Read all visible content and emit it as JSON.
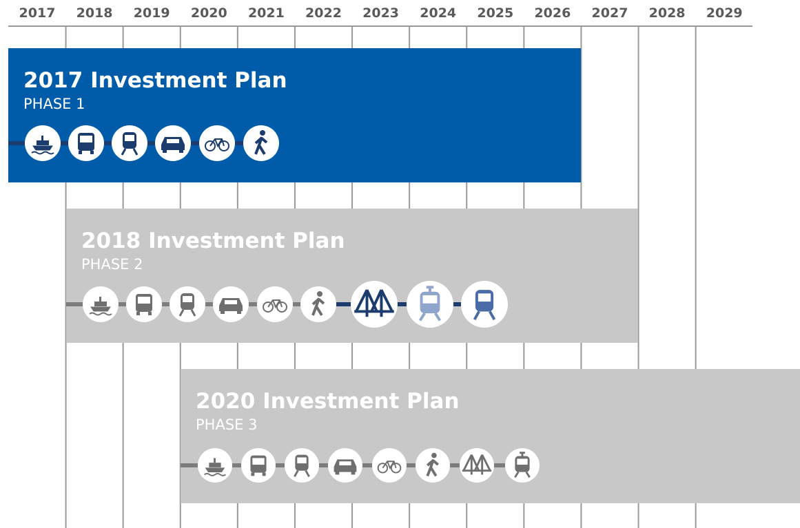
{
  "years": [
    "2017",
    "2018",
    "2019",
    "2020",
    "2021",
    "2022",
    "2023",
    "2024",
    "2025",
    "2026",
    "2027",
    "2028",
    "2029"
  ],
  "plans": [
    {
      "title": "2017 Investment Plan",
      "phase": "PHASE 1"
    },
    {
      "title": "2018 Investment Plan",
      "phase": "PHASE 2"
    },
    {
      "title": "2020 Investment Plan",
      "phase": "PHASE 3"
    }
  ]
}
